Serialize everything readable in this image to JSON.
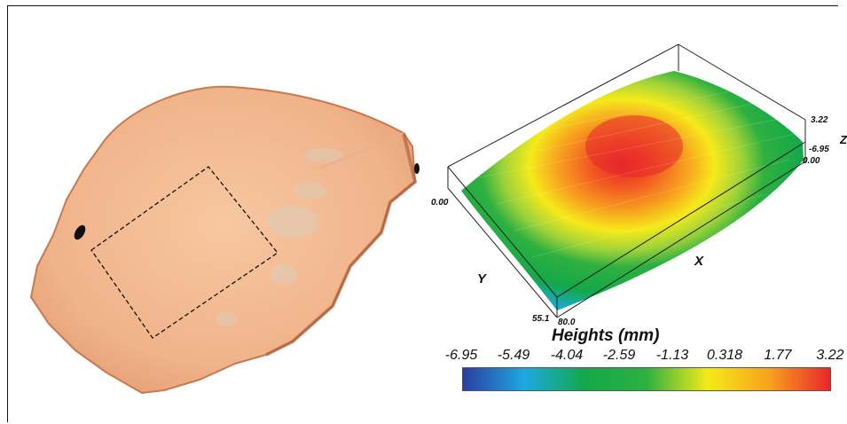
{
  "figure": {
    "axis_labels": {
      "y": "Y",
      "x": "X",
      "z": "Z"
    },
    "ticks": {
      "y_start": "0.00",
      "y_end": "55.1",
      "x_end": "80.0",
      "x_start": "0.00",
      "z_max": "3.22",
      "z_min": "-6.95"
    }
  },
  "colorbar": {
    "title": "Heights (mm)",
    "ticks": [
      "-6.95",
      "-5.49",
      "-4.04",
      "-2.59",
      "-1.13",
      "0.318",
      "1.77",
      "3.22"
    ],
    "colors": [
      "#2a3ea0",
      "#1ea8e0",
      "#14a84a",
      "#2eb040",
      "#f5ea1a",
      "#f7a21e",
      "#e8262b"
    ]
  }
}
